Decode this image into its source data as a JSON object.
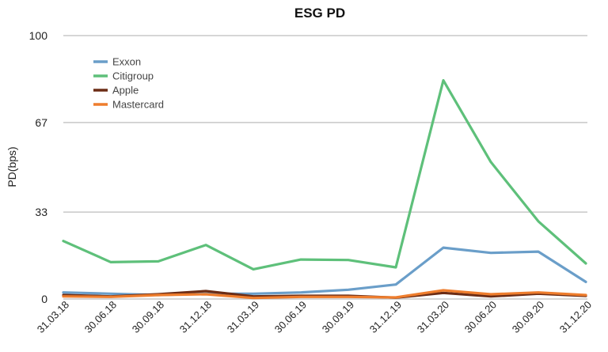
{
  "chart_data": {
    "type": "line",
    "title": "ESG PD",
    "xlabel": "",
    "ylabel": "PD(bps)",
    "ylim": [
      0,
      100
    ],
    "yticks": [
      "0",
      "33",
      "67",
      "100"
    ],
    "ytick_values": [
      0,
      33,
      67,
      100
    ],
    "categories": [
      "31.03.18",
      "30.06.18",
      "30.09.18",
      "31.12.18",
      "31.03.19",
      "30.06.19",
      "30.09.19",
      "31.12.19",
      "31.03.20",
      "30.06.20",
      "30.09.20",
      "31.12.20"
    ],
    "grid": true,
    "legend_position": "top-left",
    "series": [
      {
        "name": "Exxon",
        "color": "#6a9ec9",
        "values": [
          2.5,
          2,
          1.5,
          2,
          2,
          2.5,
          3.5,
          5.5,
          19.5,
          17.5,
          18,
          6.5
        ]
      },
      {
        "name": "Citigroup",
        "color": "#5ec07a",
        "values": [
          22,
          14,
          14.3,
          20.5,
          11.3,
          15,
          14.8,
          12,
          83,
          52,
          29.5,
          13.5
        ]
      },
      {
        "name": "Apple",
        "color": "#6b2c15",
        "values": [
          1.5,
          1,
          1.8,
          3,
          1,
          1.2,
          1.2,
          0.5,
          2.3,
          1,
          2,
          1.2
        ]
      },
      {
        "name": "Mastercard",
        "color": "#ee7d2d",
        "values": [
          1,
          0.8,
          1.5,
          1.8,
          0.4,
          0.8,
          0.8,
          0.6,
          3.3,
          1.8,
          2.5,
          1.5
        ]
      }
    ]
  }
}
